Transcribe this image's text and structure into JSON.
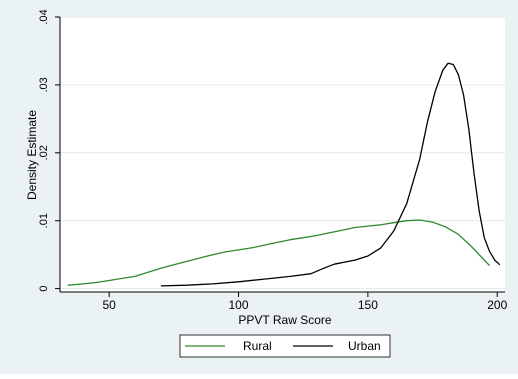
{
  "chart_data": {
    "type": "line",
    "title": "",
    "xlabel": "PPVT Raw Score",
    "ylabel": "Density Estimate",
    "xlim": [
      31,
      203
    ],
    "ylim": [
      -0.0005,
      0.04
    ],
    "x_ticks": [
      50,
      100,
      150,
      200
    ],
    "y_ticks": [
      0,
      0.01,
      0.02,
      0.03,
      0.04
    ],
    "x_tick_labels": [
      "50",
      "100",
      "150",
      "200"
    ],
    "y_tick_labels": [
      "0",
      ".01",
      ".02",
      ".03",
      ".04"
    ],
    "grid": true,
    "legend": {
      "position": "bottom"
    },
    "series": [
      {
        "name": "Rural",
        "color": "#2f8a2f",
        "x": [
          34,
          40,
          45,
          50,
          55,
          60,
          65,
          70,
          75,
          80,
          85,
          90,
          95,
          100,
          105,
          110,
          115,
          120,
          125,
          130,
          135,
          140,
          145,
          150,
          155,
          160,
          165,
          170,
          175,
          180,
          185,
          190,
          197
        ],
        "y": [
          0.0005,
          0.0007,
          0.0009,
          0.0012,
          0.0015,
          0.0018,
          0.0024,
          0.003,
          0.0035,
          0.004,
          0.0045,
          0.005,
          0.0054,
          0.0057,
          0.006,
          0.0064,
          0.0068,
          0.0072,
          0.0075,
          0.0078,
          0.0082,
          0.0086,
          0.009,
          0.0092,
          0.0094,
          0.0097,
          0.01,
          0.0101,
          0.0098,
          0.0091,
          0.008,
          0.0062,
          0.0034
        ]
      },
      {
        "name": "Urban",
        "color": "#000000",
        "x": [
          70,
          80,
          90,
          100,
          110,
          120,
          128,
          133,
          137,
          145,
          150,
          155,
          160,
          165,
          170,
          173,
          176,
          179,
          181,
          183,
          185,
          187,
          189,
          191,
          193,
          195,
          197,
          199,
          201
        ],
        "y": [
          0.0004,
          0.0005,
          0.0007,
          0.001,
          0.0014,
          0.0018,
          0.0022,
          0.003,
          0.0036,
          0.0042,
          0.0048,
          0.006,
          0.0085,
          0.0125,
          0.019,
          0.0245,
          0.029,
          0.0322,
          0.0332,
          0.033,
          0.0315,
          0.0285,
          0.0235,
          0.017,
          0.0115,
          0.0075,
          0.0055,
          0.0042,
          0.0035
        ]
      }
    ]
  }
}
